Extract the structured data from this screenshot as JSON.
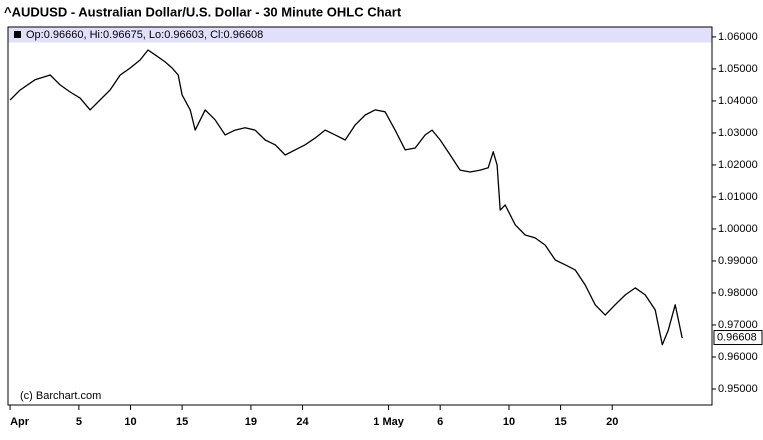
{
  "chart_data": {
    "type": "line",
    "title": "^AUDUSD - Australian Dollar/U.S. Dollar - 30 Minute OHLC Chart",
    "legend_text": "Op:0.96660, Hi:0.96675, Lo:0.96603, Cl:0.96608",
    "watermark": "(c) Barchart.com",
    "last_price": {
      "value": 0.96608,
      "label": "0.96608"
    },
    "grid": false,
    "xlim": [
      -0.12,
      40.8
    ],
    "ylim": [
      0.945,
      1.0631
    ],
    "xticks": [
      {
        "value": 0,
        "label": "Apr"
      },
      {
        "value": 4,
        "label": "5"
      },
      {
        "value": 7,
        "label": "10"
      },
      {
        "value": 10,
        "label": "15"
      },
      {
        "value": 14,
        "label": "19"
      },
      {
        "value": 17,
        "label": "24"
      },
      {
        "value": 22,
        "label": "1 May"
      },
      {
        "value": 25,
        "label": "6"
      },
      {
        "value": 29,
        "label": "10"
      },
      {
        "value": 32,
        "label": "15"
      },
      {
        "value": 35,
        "label": "20"
      }
    ],
    "yticks": [
      {
        "value": 1.06,
        "label": "1.06000"
      },
      {
        "value": 1.05,
        "label": "1.05000"
      },
      {
        "value": 1.04,
        "label": "1.04000"
      },
      {
        "value": 1.03,
        "label": "1.03000"
      },
      {
        "value": 1.02,
        "label": "1.02000"
      },
      {
        "value": 1.01,
        "label": "1.01000"
      },
      {
        "value": 1.0,
        "label": "1.00000"
      },
      {
        "value": 0.99,
        "label": "0.99000"
      },
      {
        "value": 0.98,
        "label": "0.98000"
      },
      {
        "value": 0.97,
        "label": "0.97000"
      },
      {
        "value": 0.96,
        "label": "0.96000"
      },
      {
        "value": 0.95,
        "label": "0.95000"
      }
    ],
    "series": [
      {
        "color": "#000000",
        "x": [
          0,
          0.58,
          1.45,
          2.33,
          2.91,
          3.49,
          4.07,
          4.65,
          5.23,
          5.81,
          6.4,
          6.98,
          7.56,
          8.02,
          8.43,
          9.01,
          9.42,
          9.77,
          10.0,
          10.47,
          10.76,
          11.34,
          11.92,
          12.5,
          13.08,
          13.66,
          14.24,
          14.83,
          15.41,
          15.99,
          16.57,
          17.15,
          17.73,
          18.31,
          18.9,
          19.48,
          20.06,
          20.64,
          21.22,
          21.8,
          22.38,
          22.97,
          23.55,
          24.13,
          24.53,
          25.0,
          25.58,
          26.16,
          26.74,
          27.33,
          27.79,
          28.08,
          28.31,
          28.49,
          28.78,
          29.36,
          29.94,
          30.52,
          31.1,
          31.69,
          32.27,
          32.85,
          33.43,
          34.01,
          34.59,
          35.17,
          35.76,
          36.34,
          36.92,
          37.5,
          37.91,
          38.26,
          38.66,
          39.07
        ],
        "values": [
          1.0403,
          1.0434,
          1.0466,
          1.0481,
          1.045,
          1.0428,
          1.0409,
          1.0372,
          1.0403,
          1.0434,
          1.0481,
          1.0503,
          1.0528,
          1.0559,
          1.0544,
          1.0522,
          1.0503,
          1.0481,
          1.0419,
          1.0372,
          1.0309,
          1.0372,
          1.0341,
          1.0294,
          1.0309,
          1.0316,
          1.0309,
          1.0278,
          1.0263,
          1.0231,
          1.0247,
          1.0263,
          1.0284,
          1.0309,
          1.0294,
          1.0278,
          1.0325,
          1.0356,
          1.0372,
          1.0366,
          1.0309,
          1.0247,
          1.0253,
          1.0294,
          1.0309,
          1.0278,
          1.0231,
          1.0184,
          1.0178,
          1.0184,
          1.0191,
          1.0241,
          1.02,
          1.0059,
          1.0075,
          1.0013,
          0.9981,
          0.9972,
          0.995,
          0.9903,
          0.9888,
          0.9872,
          0.9825,
          0.9763,
          0.9731,
          0.9763,
          0.9794,
          0.9816,
          0.9794,
          0.9747,
          0.9638,
          0.9684,
          0.9763,
          0.9659
        ]
      }
    ]
  }
}
